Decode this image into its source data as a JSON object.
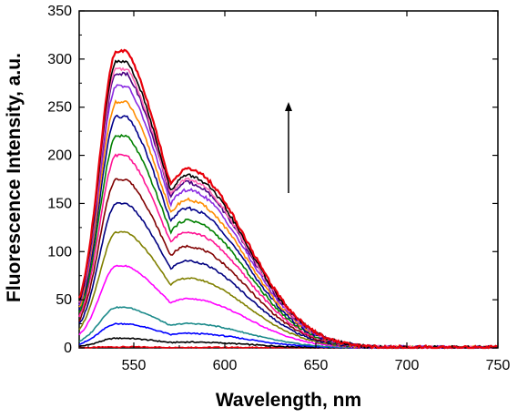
{
  "chart_data": {
    "type": "line",
    "title": "",
    "xlabel": "Wavelength, nm",
    "ylabel": "Fluorescence Intensity, a.u.",
    "xlim": [
      520,
      750
    ],
    "ylim": [
      0,
      350
    ],
    "xticks": [
      550,
      600,
      650,
      700,
      750
    ],
    "yticks": [
      0,
      50,
      100,
      150,
      200,
      250,
      300,
      350
    ],
    "grid": false,
    "legend": "none",
    "annotation": "upward arrow indicating increasing intensity",
    "series_shape": {
      "peak_wavelength": 540,
      "shoulder_wavelength": 580,
      "shoulder_ratio": 0.6,
      "tail_end_wavelength": 750
    },
    "series": [
      {
        "color": "#e8000b",
        "peak": 1
      },
      {
        "color": "#000000",
        "peak": 10
      },
      {
        "color": "#0000ff",
        "peak": 25
      },
      {
        "color": "#1b8a8a",
        "peak": 42
      },
      {
        "color": "#ff00ff",
        "peak": 85
      },
      {
        "color": "#808000",
        "peak": 120
      },
      {
        "color": "#000080",
        "peak": 150
      },
      {
        "color": "#800000",
        "peak": 175
      },
      {
        "color": "#ff1493",
        "peak": 200
      },
      {
        "color": "#008000",
        "peak": 220
      },
      {
        "color": "#00008b",
        "peak": 240
      },
      {
        "color": "#ff8c00",
        "peak": 255
      },
      {
        "color": "#8a2be2",
        "peak": 272
      },
      {
        "color": "#4b0082",
        "peak": 285
      },
      {
        "color": "#ff69b4",
        "peak": 290
      },
      {
        "color": "#000000",
        "peak": 297
      },
      {
        "color": "#e8000b",
        "peak": 308
      }
    ]
  }
}
